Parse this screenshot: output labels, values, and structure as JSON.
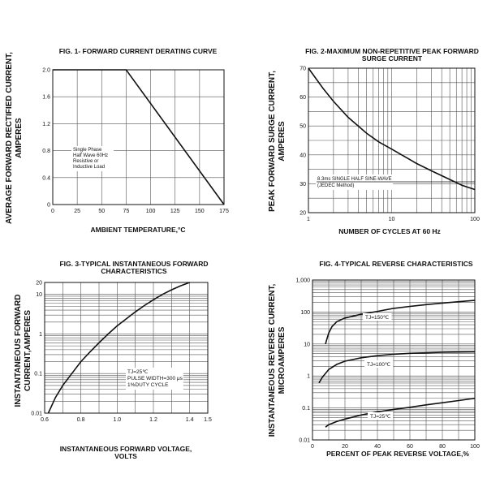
{
  "chart_data": [
    {
      "type": "line",
      "title": "FIG. 1- FORWARD CURRENT DERATING CURVE",
      "title_line2": "",
      "xlabel": "AMBIENT TEMPERATURE,°C",
      "ylabel_line1": "AVERAGE FORWARD RECTIFIED CURRENT,",
      "ylabel_line2": "AMPERES",
      "x_scale": "linear",
      "y_scale": "linear",
      "xlim": [
        0,
        175
      ],
      "ylim": [
        0,
        2.0
      ],
      "x_ticks": [
        "0",
        "25",
        "50",
        "75",
        "100",
        "125",
        "150",
        "175"
      ],
      "y_ticks": [
        "0",
        "0.4",
        "0.8",
        "1.2",
        "1.6",
        "2.0"
      ],
      "series": [
        {
          "x": [
            0,
            75,
            175
          ],
          "y": [
            2.0,
            2.0,
            0
          ]
        }
      ],
      "annotation": [
        "Single Phase",
        "Half Wave 60Hz",
        "Resistive or",
        "Inductive Load"
      ]
    },
    {
      "type": "line",
      "title": "FIG. 2-MAXIMUM NON-REPETITIVE PEAK FORWARD",
      "title_line2": "SURGE CURRENT",
      "xlabel": "NUMBER OF CYCLES AT 60 Hz",
      "ylabel_line1": "PEAK FORWARD SURGE CURRENT,",
      "ylabel_line2": "AMPERES",
      "x_scale": "log",
      "y_scale": "linear",
      "xlim": [
        1,
        100
      ],
      "ylim": [
        20,
        70
      ],
      "x_ticks": [
        "1",
        "10",
        "100"
      ],
      "y_ticks": [
        "20",
        "30",
        "40",
        "50",
        "60",
        "70"
      ],
      "series": [
        {
          "x": [
            1,
            1.5,
            2,
            3,
            5,
            7,
            10,
            20,
            30,
            50,
            70,
            100
          ],
          "y": [
            70,
            63,
            58.5,
            53,
            47.5,
            44.5,
            42,
            37,
            34.5,
            31.5,
            29.5,
            28
          ]
        }
      ],
      "annotation": [
        "8.3ms SINGLE HALF SINE-WAVE",
        "(JEDEC Method)"
      ]
    },
    {
      "type": "line",
      "title": "FIG. 3-TYPICAL INSTANTANEOUS FORWARD",
      "title_line2": "CHARACTERISTICS",
      "xlabel": "INSTANTANEOUS FORWARD VOLTAGE,",
      "xlabel_line2": "VOLTS",
      "ylabel_line1": "INSTANTANEOUS FORWARD",
      "ylabel_line2": "CURRENT,AMPERES",
      "x_scale": "linear",
      "y_scale": "log",
      "xlim": [
        0.6,
        1.5
      ],
      "ylim": [
        0.01,
        20
      ],
      "x_ticks": [
        "0.6",
        "0.8",
        "1.0",
        "1.2",
        "1.4",
        "1.5"
      ],
      "y_ticks": [
        "0.01",
        "0.1",
        "1",
        "10",
        "20"
      ],
      "series": [
        {
          "x": [
            0.62,
            0.66,
            0.7,
            0.75,
            0.8,
            0.85,
            0.9,
            0.95,
            1.0,
            1.05,
            1.1,
            1.15,
            1.2,
            1.25,
            1.3,
            1.35,
            1.4
          ],
          "y": [
            0.01,
            0.025,
            0.05,
            0.1,
            0.2,
            0.35,
            0.6,
            1.0,
            1.6,
            2.4,
            3.6,
            5.2,
            7.3,
            10,
            13,
            16.5,
            20
          ]
        }
      ],
      "annotation": [
        "TJ=25℃",
        "PULSE WIDTH=300 μs",
        "1%DUTY CYCLE"
      ]
    },
    {
      "type": "line",
      "title": "FIG. 4-TYPICAL REVERSE CHARACTERISTICS",
      "title_line2": "",
      "xlabel": "PERCENT OF PEAK REVERSE VOLTAGE,%",
      "ylabel_line1": "INSTANTANEOUS REVERSE CURRENT,",
      "ylabel_line2": "MICROAMPERES",
      "x_scale": "linear",
      "y_scale": "log",
      "xlim": [
        0,
        100
      ],
      "ylim": [
        0.01,
        1000
      ],
      "x_ticks": [
        "0",
        "20",
        "40",
        "60",
        "80",
        "100"
      ],
      "y_ticks": [
        "0.01",
        "0.1",
        "1",
        "10",
        "100",
        "1,000"
      ],
      "series": [
        {
          "name": "TJ=150℃",
          "x": [
            8,
            9,
            10,
            12,
            15,
            20,
            30,
            40,
            50,
            60,
            70,
            80,
            90,
            100
          ],
          "y": [
            10,
            15,
            22,
            35,
            50,
            65,
            85,
            105,
            130,
            150,
            170,
            190,
            210,
            230
          ]
        },
        {
          "name": "TJ=100℃",
          "x": [
            4,
            6,
            8,
            10,
            15,
            20,
            30,
            40,
            50,
            60,
            70,
            80,
            90,
            100
          ],
          "y": [
            0.6,
            0.9,
            1.2,
            1.6,
            2.3,
            2.9,
            3.7,
            4.3,
            4.8,
            5.1,
            5.3,
            5.5,
            5.6,
            5.7
          ]
        },
        {
          "name": "TJ=25℃",
          "x": [
            8,
            10,
            15,
            20,
            30,
            40,
            50,
            60,
            70,
            80,
            90,
            100
          ],
          "y": [
            0.025,
            0.03,
            0.038,
            0.045,
            0.06,
            0.075,
            0.09,
            0.105,
            0.125,
            0.145,
            0.17,
            0.2
          ]
        }
      ]
    }
  ]
}
